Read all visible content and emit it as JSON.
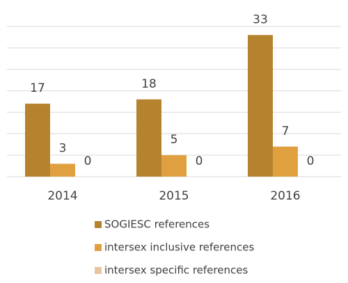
{
  "chart_data": {
    "type": "bar",
    "categories": [
      "2014",
      "2015",
      "2016"
    ],
    "series": [
      {
        "name": "SOGIESC references",
        "color": "#b5832e",
        "values": [
          17,
          18,
          33
        ]
      },
      {
        "name": "intersex inclusive references",
        "color": "#e0a040",
        "values": [
          3,
          5,
          7
        ]
      },
      {
        "name": "intersex specific references",
        "color": "#e8c4a0",
        "values": [
          0,
          0,
          0
        ]
      }
    ],
    "ylim": [
      0,
      35
    ],
    "yticks": [
      0,
      5,
      10,
      15,
      20,
      25,
      30,
      35
    ],
    "grid": true,
    "legend": "bottom"
  }
}
